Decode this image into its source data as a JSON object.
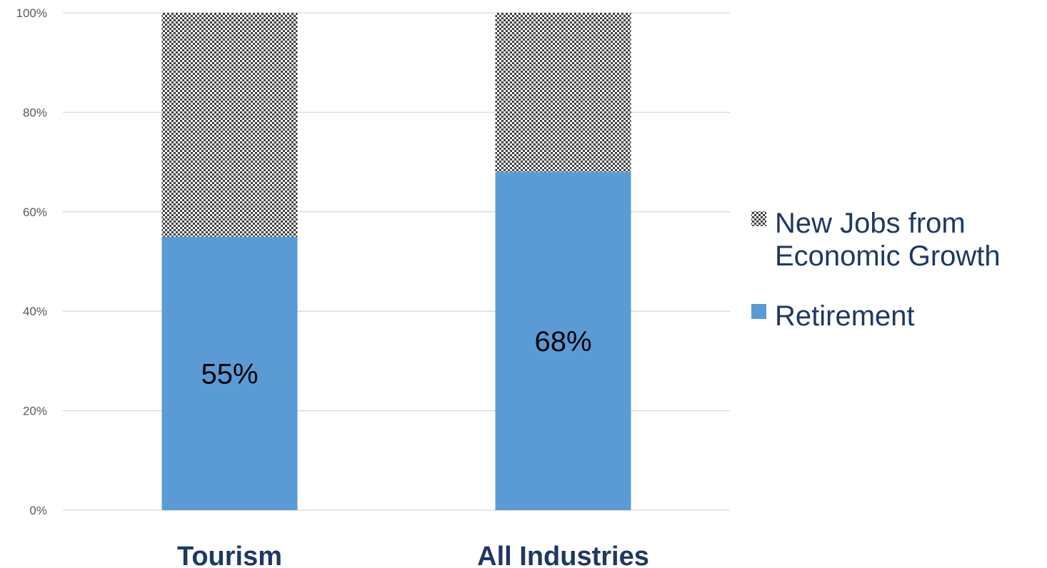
{
  "chart_data": {
    "type": "bar",
    "stacked": true,
    "categories": [
      "Tourism",
      "All Industries"
    ],
    "series": [
      {
        "name": "Retirement",
        "values": [
          55,
          68
        ],
        "color": "#5b9bd5",
        "labels": [
          "55%",
          "68%"
        ]
      },
      {
        "name": "New Jobs from Economic Growth",
        "legend_lines": [
          "New Jobs from",
          "Economic Growth"
        ],
        "values": [
          45,
          32
        ],
        "pattern": "checker"
      }
    ],
    "y_ticks": [
      "0%",
      "20%",
      "40%",
      "60%",
      "80%",
      "100%"
    ],
    "ylim": [
      0,
      100
    ],
    "grid": true,
    "legend": "right"
  }
}
